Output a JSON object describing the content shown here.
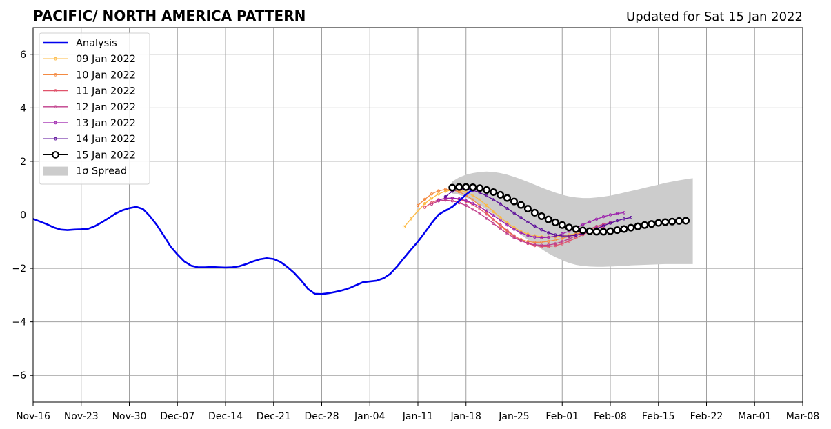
{
  "chart_data": {
    "type": "line",
    "title": "PACIFIC/ NORTH AMERICA PATTERN",
    "subtitle": "Updated for Sat 15 Jan 2022",
    "xlabel": "",
    "ylabel": "",
    "x_axis": {
      "type": "date",
      "range": [
        "2021-11-16",
        "2022-03-08"
      ],
      "ticks": [
        {
          "date": "2021-11-16",
          "label": "Nov-16"
        },
        {
          "date": "2021-11-23",
          "label": "Nov-23"
        },
        {
          "date": "2021-11-30",
          "label": "Nov-30"
        },
        {
          "date": "2021-12-07",
          "label": "Dec-07"
        },
        {
          "date": "2021-12-14",
          "label": "Dec-14"
        },
        {
          "date": "2021-12-21",
          "label": "Dec-21"
        },
        {
          "date": "2021-12-28",
          "label": "Dec-28"
        },
        {
          "date": "2022-01-04",
          "label": "Jan-04"
        },
        {
          "date": "2022-01-11",
          "label": "Jan-11"
        },
        {
          "date": "2022-01-18",
          "label": "Jan-18"
        },
        {
          "date": "2022-01-25",
          "label": "Jan-25"
        },
        {
          "date": "2022-02-01",
          "label": "Feb-01"
        },
        {
          "date": "2022-02-08",
          "label": "Feb-08"
        },
        {
          "date": "2022-02-15",
          "label": "Feb-15"
        },
        {
          "date": "2022-02-22",
          "label": "Feb-22"
        },
        {
          "date": "2022-03-01",
          "label": "Mar-01"
        },
        {
          "date": "2022-03-08",
          "label": "Mar-08"
        }
      ]
    },
    "y_axis": {
      "range": [
        -7,
        7
      ],
      "ticks": [
        -6,
        -4,
        -2,
        0,
        2,
        4,
        6
      ],
      "tick_labels": [
        "−6",
        "−4",
        "−2",
        "0",
        "2",
        "4",
        "6"
      ]
    },
    "grid": true,
    "zero_line": true,
    "legend": {
      "placement": "top-left",
      "entries": [
        {
          "label": "Analysis",
          "kind": "line",
          "color": "#0000ee"
        },
        {
          "label": "09 Jan 2022",
          "kind": "line-marker",
          "color": "#fdb940"
        },
        {
          "label": "10 Jan 2022",
          "kind": "line-marker",
          "color": "#f48a42"
        },
        {
          "label": "11 Jan 2022",
          "kind": "line-marker",
          "color": "#e0536b"
        },
        {
          "label": "12 Jan 2022",
          "kind": "line-marker",
          "color": "#c13c8a"
        },
        {
          "label": "13 Jan 2022",
          "kind": "line-marker",
          "color": "#9c1fac"
        },
        {
          "label": "14 Jan 2022",
          "kind": "line-marker",
          "color": "#5a0a99"
        },
        {
          "label": "15 Jan 2022",
          "kind": "big-marker",
          "color": "#000000"
        },
        {
          "label": "1σ Spread",
          "kind": "patch",
          "color": "#cccccc"
        }
      ]
    },
    "analysis": {
      "name": "Analysis",
      "color": "#0000ee",
      "start": "2021-11-16",
      "values": [
        -0.15,
        -0.25,
        -0.35,
        -0.47,
        -0.55,
        -0.57,
        -0.55,
        -0.54,
        -0.52,
        -0.42,
        -0.28,
        -0.12,
        0.05,
        0.17,
        0.25,
        0.3,
        0.22,
        -0.05,
        -0.38,
        -0.77,
        -1.18,
        -1.48,
        -1.74,
        -1.9,
        -1.96,
        -1.96,
        -1.95,
        -1.96,
        -1.97,
        -1.96,
        -1.92,
        -1.84,
        -1.74,
        -1.66,
        -1.62,
        -1.65,
        -1.76,
        -1.95,
        -2.17,
        -2.45,
        -2.77,
        -2.95,
        -2.96,
        -2.93,
        -2.88,
        -2.82,
        -2.74,
        -2.63,
        -2.52,
        -2.49,
        -2.46,
        -2.37,
        -2.2,
        -1.92,
        -1.6,
        -1.3,
        -1.0,
        -0.66,
        -0.31,
        0.01,
        0.16,
        0.3,
        0.52,
        0.76,
        0.95
      ]
    },
    "forecasts": [
      {
        "name": "09 Jan 2022",
        "color": "#fdb940",
        "start": "2022-01-09",
        "values": [
          -0.45,
          -0.15,
          0.15,
          0.42,
          0.62,
          0.78,
          0.88,
          0.93,
          0.92,
          0.85,
          0.73,
          0.56,
          0.35,
          0.12,
          -0.1,
          -0.3,
          -0.48,
          -0.62,
          -0.72,
          -0.78,
          -0.82,
          -0.83,
          -0.82,
          -0.79,
          -0.75,
          -0.71,
          -0.68,
          -0.67,
          -0.68
        ]
      },
      {
        "name": "10 Jan 2022",
        "color": "#f48a42",
        "start": "2022-01-11",
        "values": [
          0.35,
          0.58,
          0.78,
          0.9,
          0.95,
          0.93,
          0.86,
          0.73,
          0.56,
          0.34,
          0.09,
          -0.18,
          -0.42,
          -0.62,
          -0.8,
          -0.92,
          -1.0,
          -1.03,
          -1.02,
          -0.99,
          -0.94,
          -0.88,
          -0.8,
          -0.72,
          -0.64,
          -0.55,
          -0.45,
          -0.37
        ]
      },
      {
        "name": "11 Jan 2022",
        "color": "#e0536b",
        "start": "2022-01-12",
        "values": [
          0.28,
          0.45,
          0.57,
          0.62,
          0.62,
          0.58,
          0.5,
          0.38,
          0.22,
          0.03,
          -0.18,
          -0.38,
          -0.58,
          -0.78,
          -0.95,
          -1.07,
          -1.15,
          -1.18,
          -1.18,
          -1.15,
          -1.08,
          -0.98,
          -0.86,
          -0.74,
          -0.62,
          -0.52,
          -0.43
        ]
      },
      {
        "name": "12 Jan 2022",
        "color": "#c13c8a",
        "start": "2022-01-13",
        "values": [
          0.4,
          0.52,
          0.55,
          0.52,
          0.45,
          0.35,
          0.21,
          0.05,
          -0.13,
          -0.32,
          -0.52,
          -0.7,
          -0.85,
          -0.97,
          -1.06,
          -1.12,
          -1.14,
          -1.13,
          -1.08,
          -1.0,
          -0.9,
          -0.78,
          -0.65,
          -0.53,
          -0.43,
          -0.35,
          -0.28
        ]
      },
      {
        "name": "13 Jan 2022",
        "color": "#9c1fac",
        "start": "2022-01-14",
        "values": [
          0.55,
          0.62,
          0.63,
          0.6,
          0.53,
          0.43,
          0.3,
          0.15,
          -0.02,
          -0.2,
          -0.38,
          -0.54,
          -0.67,
          -0.77,
          -0.83,
          -0.85,
          -0.84,
          -0.79,
          -0.71,
          -0.61,
          -0.49,
          -0.37,
          -0.26,
          -0.16,
          -0.07,
          0.0,
          0.05,
          0.08
        ]
      },
      {
        "name": "14 Jan 2022",
        "color": "#5a0a99",
        "start": "2022-01-15",
        "values": [
          0.68,
          0.88,
          0.96,
          0.97,
          0.92,
          0.83,
          0.71,
          0.57,
          0.41,
          0.24,
          0.07,
          -0.1,
          -0.27,
          -0.42,
          -0.56,
          -0.67,
          -0.75,
          -0.79,
          -0.79,
          -0.76,
          -0.7,
          -0.61,
          -0.51,
          -0.41,
          -0.31,
          -0.22,
          -0.15,
          -0.1
        ]
      }
    ],
    "latest": {
      "name": "15 Jan 2022",
      "color": "#000000",
      "start": "2022-01-16",
      "values": [
        1.02,
        1.04,
        1.04,
        1.03,
        1.0,
        0.93,
        0.85,
        0.75,
        0.63,
        0.5,
        0.37,
        0.23,
        0.08,
        -0.05,
        -0.17,
        -0.28,
        -0.38,
        -0.47,
        -0.53,
        -0.58,
        -0.61,
        -0.63,
        -0.63,
        -0.61,
        -0.57,
        -0.53,
        -0.48,
        -0.43,
        -0.38,
        -0.34,
        -0.3,
        -0.27,
        -0.25,
        -0.23,
        -0.22
      ]
    },
    "spread": {
      "name": "1σ Spread",
      "color": "#cccccc",
      "start": "2022-01-16",
      "upper": [
        1.25,
        1.4,
        1.5,
        1.56,
        1.6,
        1.62,
        1.6,
        1.56,
        1.5,
        1.42,
        1.33,
        1.23,
        1.13,
        1.02,
        0.92,
        0.83,
        0.75,
        0.69,
        0.65,
        0.63,
        0.63,
        0.65,
        0.68,
        0.72,
        0.77,
        0.83,
        0.89,
        0.95,
        1.01,
        1.07,
        1.13,
        1.19,
        1.24,
        1.29,
        1.33,
        1.37
      ],
      "lower": [
        0.8,
        0.75,
        0.65,
        0.52,
        0.37,
        0.2,
        0.02,
        -0.17,
        -0.36,
        -0.55,
        -0.74,
        -0.93,
        -1.11,
        -1.28,
        -1.44,
        -1.58,
        -1.7,
        -1.8,
        -1.87,
        -1.91,
        -1.93,
        -1.94,
        -1.94,
        -1.93,
        -1.92,
        -1.91,
        -1.89,
        -1.88,
        -1.87,
        -1.86,
        -1.85,
        -1.84,
        -1.84,
        -1.84,
        -1.84,
        -1.84
      ]
    }
  }
}
